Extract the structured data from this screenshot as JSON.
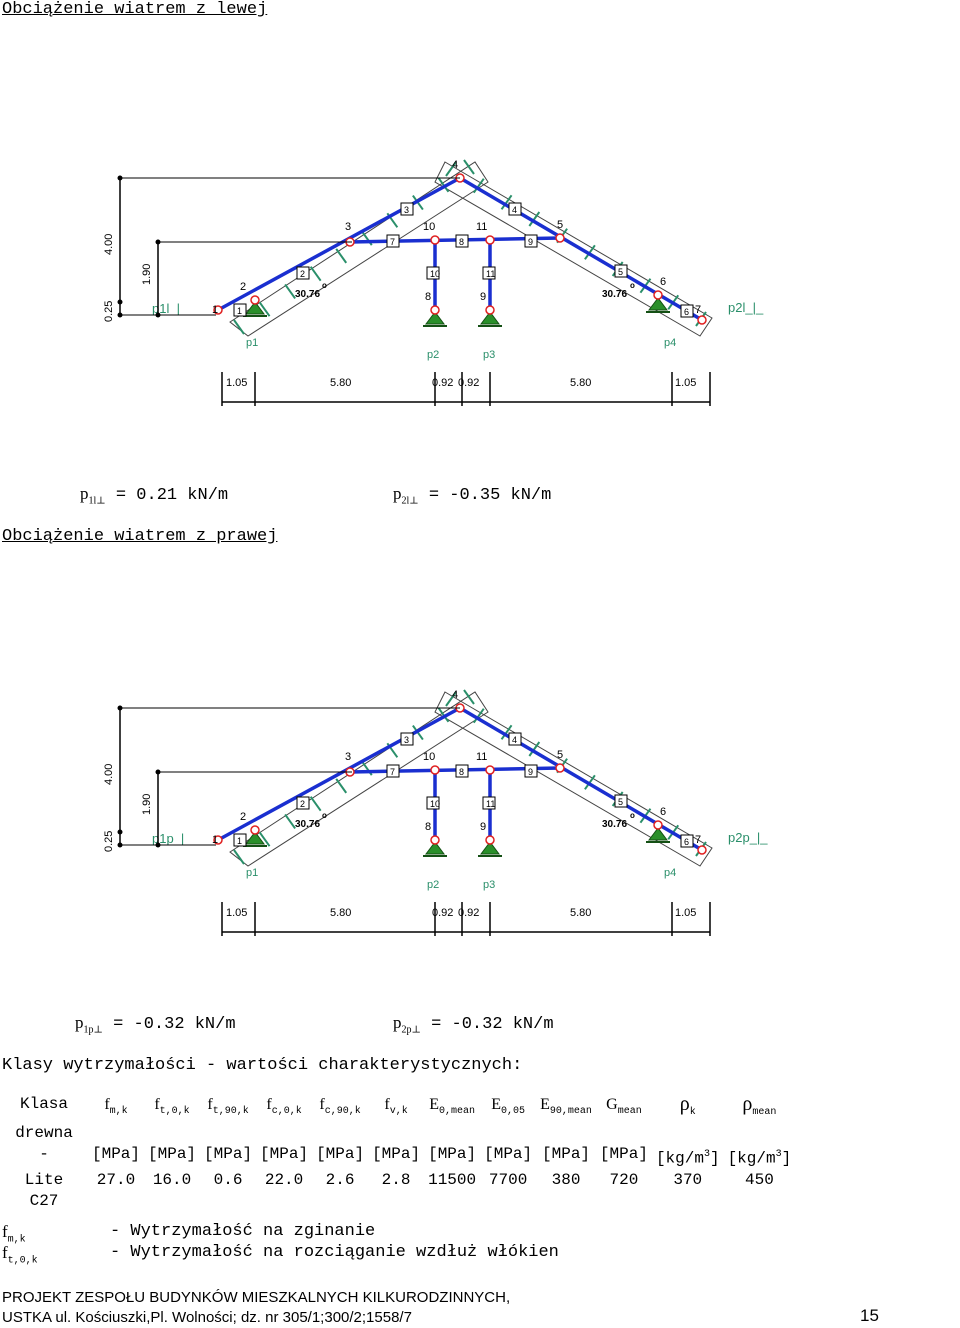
{
  "section1": {
    "title": "Obciążenie wiatrem z lewej"
  },
  "load1": {
    "p1_sym": "p",
    "p1_sub": "1l⊥",
    "p1_val": " = 0.21 kN/m",
    "p2_sym": "p",
    "p2_sub": "2l⊥",
    "p2_val": " = -0.35 kN/m"
  },
  "section2": {
    "title": "Obciążenie wiatrem z prawej"
  },
  "load2": {
    "p1_sym": "p",
    "p1_sub": "1p⊥",
    "p1_val": " = -0.32 kN/m",
    "p2_sym": "p",
    "p2_sub": "2p⊥",
    "p2_val": " = -0.32 kN/m"
  },
  "diagram": {
    "heights": [
      "0.25",
      "4.00",
      "1.90"
    ],
    "dims": [
      "1.05",
      "5.80",
      "0.92",
      "0.92",
      "5.80",
      "1.05"
    ],
    "angle": "30.76",
    "angle_sup": "o",
    "supports": [
      "p1",
      "p2",
      "p3",
      "p4"
    ],
    "nodes": [
      "1",
      "2",
      "3",
      "4",
      "5",
      "6",
      "7",
      "8",
      "9",
      "10",
      "11"
    ],
    "members": [
      "1",
      "2",
      "3",
      "4",
      "5",
      "6",
      "7",
      "8",
      "9",
      "10",
      "11"
    ],
    "left_load_1": "p1l_|_",
    "right_load_1": "p2l_|_",
    "left_load_2": "p1p_|_",
    "right_load_2": "p2p_|_",
    "colors": {
      "member": "#1a2fd0",
      "load": "#2a8f6a",
      "support": "#2a8f2a",
      "node": "#e02020",
      "text": "#000000"
    }
  },
  "classes_title": "Klasy wytrzymałości - wartości charakterystycznych:",
  "table": {
    "c1": "Klasa",
    "c1b": "drewna",
    "h": [
      {
        "s": "f",
        "sub": "m,k"
      },
      {
        "s": "f",
        "sub": "t,0,k"
      },
      {
        "s": "f",
        "sub": "t,90,k"
      },
      {
        "s": "f",
        "sub": "c,0,k"
      },
      {
        "s": "f",
        "sub": "c,90,k"
      },
      {
        "s": "f",
        "sub": "v,k"
      },
      {
        "s": "E",
        "sub": "0,mean"
      },
      {
        "s": "E",
        "sub": "0,05"
      },
      {
        "s": "E",
        "sub": "90,mean"
      },
      {
        "s": "G",
        "sub": "mean"
      },
      {
        "s": "ρ",
        "sub": "k"
      },
      {
        "s": "ρ",
        "sub": "mean"
      }
    ],
    "units_first": "-",
    "units": [
      "[MPa]",
      "[MPa]",
      "[MPa]",
      "[MPa]",
      "[MPa]",
      "[MPa]",
      "[MPa]",
      "[MPa]",
      "[MPa]",
      "[MPa]",
      "[kg/m",
      "[kg/m"
    ],
    "unit_sup": "3",
    "unit_close": "]",
    "row_name": "Lite",
    "row_name2": "C27",
    "values": [
      "27.0",
      "16.0",
      "0.6",
      "22.0",
      "2.6",
      "2.8",
      "11500",
      "7700",
      "380",
      "720",
      "370",
      "450"
    ]
  },
  "legend": [
    {
      "s": "f",
      "sub": "m,k",
      "desc": "- Wytrzymałość na zginanie"
    },
    {
      "s": "f",
      "sub": "t,0,k",
      "desc": "- Wytrzymałość na rozciąganie wzdłuż włókien"
    }
  ],
  "footer": {
    "line1": "PROJEKT ZESPOŁU BUDYNKÓW MIESZKALNYCH KILKURODZINNYCH,",
    "line2": "USTKA ul. Kościuszki,Pl. Wolności; dz. nr 305/1;300/2;1558/7",
    "page": "15"
  }
}
